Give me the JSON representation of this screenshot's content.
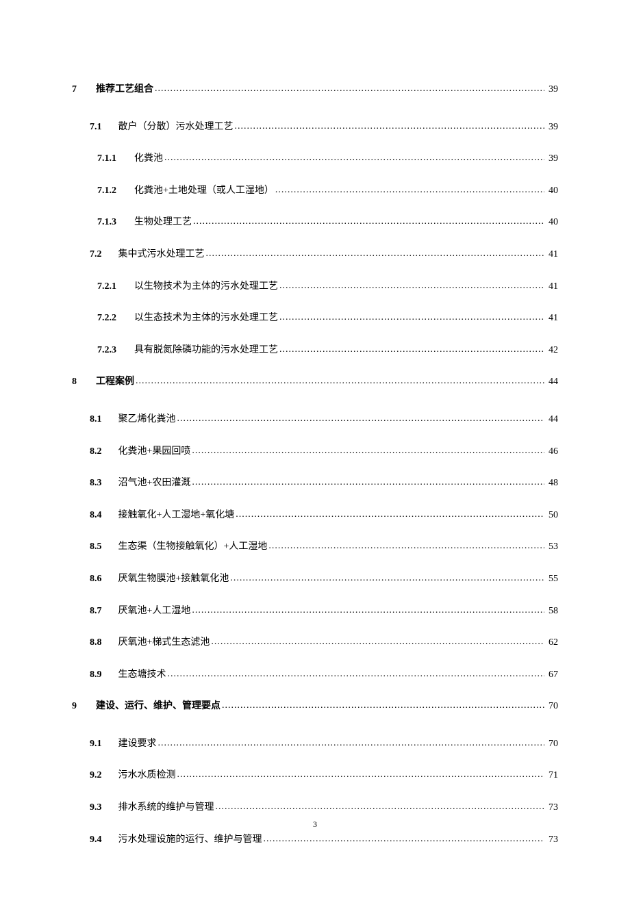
{
  "toc": {
    "entries": [
      {
        "level": 1,
        "number": "7",
        "title": "推荐工艺组合",
        "page": "39"
      },
      {
        "level": 2,
        "number": "7.1",
        "title": "散户（分散）污水处理工艺",
        "page": "39"
      },
      {
        "level": 3,
        "number": "7.1.1",
        "title": "化粪池",
        "page": "39"
      },
      {
        "level": 3,
        "number": "7.1.2",
        "title": "化粪池+土地处理（或人工湿地）",
        "page": "40"
      },
      {
        "level": 3,
        "number": "7.1.3",
        "title": "生物处理工艺",
        "page": "40"
      },
      {
        "level": 2,
        "number": "7.2",
        "title": "集中式污水处理工艺",
        "page": "41"
      },
      {
        "level": 3,
        "number": "7.2.1",
        "title": "以生物技术为主体的污水处理工艺",
        "page": "41"
      },
      {
        "level": 3,
        "number": "7.2.2",
        "title": "以生态技术为主体的污水处理工艺",
        "page": "41"
      },
      {
        "level": 3,
        "number": "7.2.3",
        "title": "具有脱氮除磷功能的污水处理工艺",
        "page": "42"
      },
      {
        "level": 1,
        "number": "8",
        "title": "工程案例",
        "page": "44"
      },
      {
        "level": 2,
        "number": "8.1",
        "title": "聚乙烯化粪池",
        "page": "44"
      },
      {
        "level": 2,
        "number": "8.2",
        "title": "化粪池+果园回喷",
        "page": "46"
      },
      {
        "level": 2,
        "number": "8.3",
        "title": "沼气池+农田灌溉",
        "page": "48"
      },
      {
        "level": 2,
        "number": "8.4",
        "title": "接触氧化+人工湿地+氧化塘",
        "page": "50"
      },
      {
        "level": 2,
        "number": "8.5",
        "title": "生态渠（生物接触氧化）+人工湿地",
        "page": "53"
      },
      {
        "level": 2,
        "number": "8.6",
        "title": "厌氧生物膜池+接触氧化池",
        "page": "55"
      },
      {
        "level": 2,
        "number": "8.7",
        "title": "厌氧池+人工湿地",
        "page": "58"
      },
      {
        "level": 2,
        "number": "8.8",
        "title": "厌氧池+梯式生态滤池",
        "page": "62"
      },
      {
        "level": 2,
        "number": "8.9",
        "title": "生态塘技术",
        "page": "67"
      },
      {
        "level": 1,
        "number": "9",
        "title": "建设、运行、维护、管理要点",
        "page": "70"
      },
      {
        "level": 2,
        "number": "9.1",
        "title": "建设要求",
        "page": "70"
      },
      {
        "level": 2,
        "number": "9.2",
        "title": "污水水质检测",
        "page": "71"
      },
      {
        "level": 2,
        "number": "9.3",
        "title": "排水系统的维护与管理",
        "page": "73"
      },
      {
        "level": 2,
        "number": "9.4",
        "title": "污水处理设施的运行、维护与管理",
        "page": "73"
      }
    ]
  },
  "pageNumber": "3"
}
